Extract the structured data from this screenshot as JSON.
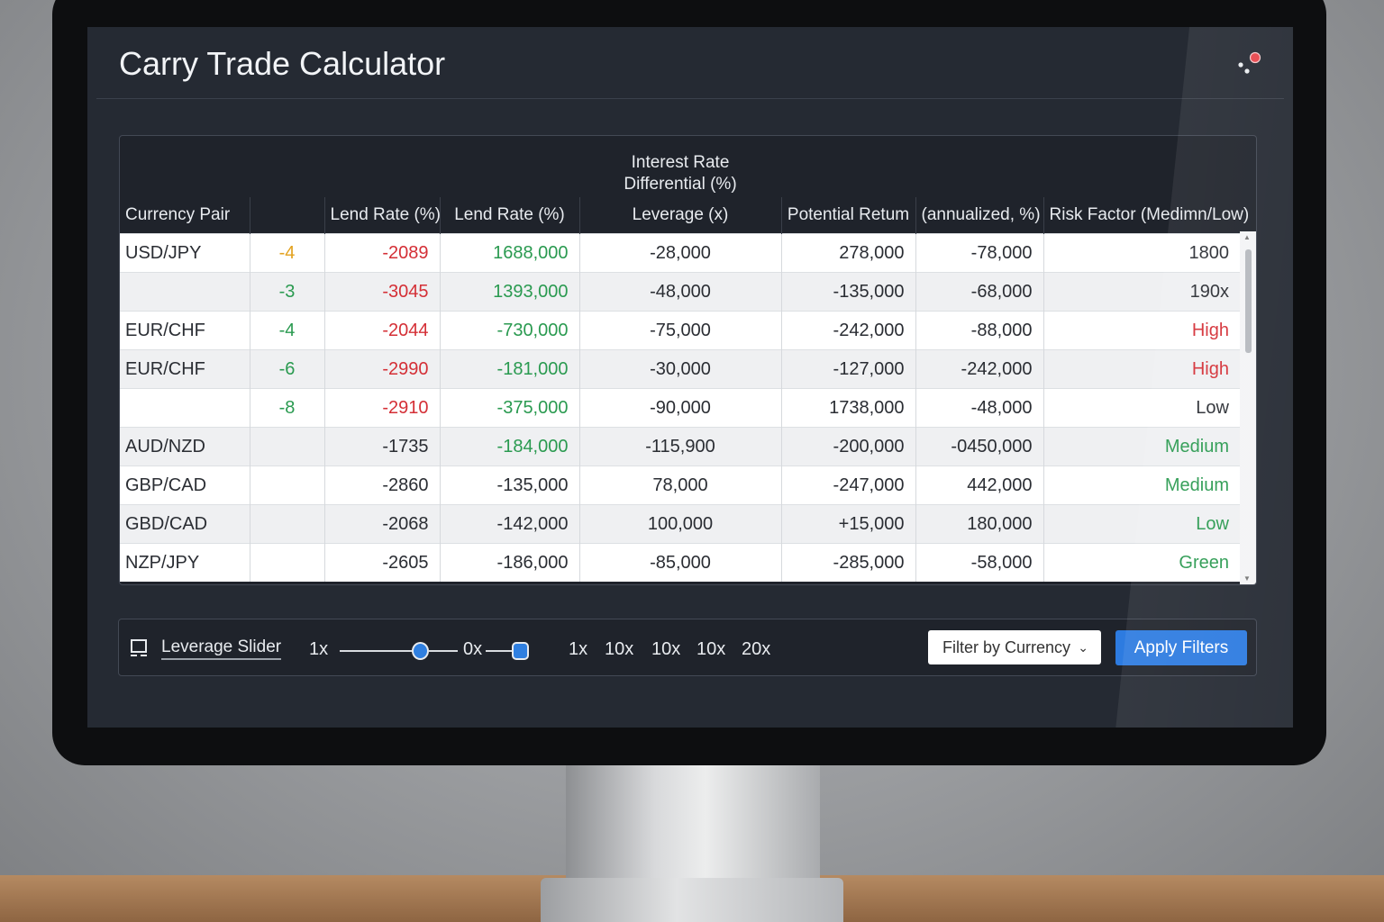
{
  "app": {
    "title": "Carry Trade Calculator",
    "menu_icon": "dots-notification-icon",
    "notification_color": "#e8454b"
  },
  "table": {
    "group_header": "Interest Rate Differential (%)",
    "group_header_line1": "Interest Rate",
    "group_header_line2": "Differential (%)",
    "columns": [
      "Currency Pair",
      "",
      "Lend Rate (%)",
      "Lend Rate (%)",
      "Leverage (x)",
      "Potential Retum",
      "(annualized, %)",
      "Risk Factor (Medimn/Low)"
    ],
    "rows": [
      {
        "cells": [
          "USD/JPY",
          "-4",
          "-2089",
          "1688,000",
          "-28,000",
          "278,000",
          "-78,000",
          "1800"
        ],
        "tones": [
          "",
          "orange",
          "red",
          "green",
          "",
          "",
          "",
          ""
        ]
      },
      {
        "cells": [
          "",
          "-3",
          "-3045",
          "1393,000",
          "-48,000",
          "-135,000",
          "-68,000",
          "190x"
        ],
        "tones": [
          "",
          "green",
          "red",
          "green",
          "",
          "",
          "",
          ""
        ]
      },
      {
        "cells": [
          "EUR/CHF",
          "-4",
          "-2044",
          "-730,000",
          "-75,000",
          "-242,000",
          "-88,000",
          "High"
        ],
        "tones": [
          "",
          "green",
          "red",
          "green",
          "",
          "",
          "",
          "red"
        ]
      },
      {
        "cells": [
          "EUR/CHF",
          "-6",
          "-2990",
          "-181,000",
          "-30,000",
          "-127,000",
          "-242,000",
          "High"
        ],
        "tones": [
          "",
          "green",
          "red",
          "green",
          "",
          "",
          "",
          "red"
        ]
      },
      {
        "cells": [
          "",
          "-8",
          "-2910",
          "-375,000",
          "-90,000",
          "1738,000",
          "-48,000",
          "Low"
        ],
        "tones": [
          "",
          "green",
          "red",
          "green",
          "",
          "",
          "",
          ""
        ]
      },
      {
        "cells": [
          "AUD/NZD",
          "",
          "-1735",
          "-184,000",
          "-115,900",
          "-200,000",
          "-0450,000",
          "Medium"
        ],
        "tones": [
          "",
          "",
          "",
          "green",
          "",
          "",
          "",
          "green"
        ]
      },
      {
        "cells": [
          "GBP/CAD",
          "",
          "-2860",
          "-135,000",
          "78,000",
          "-247,000",
          "442,000",
          "Medium"
        ],
        "tones": [
          "",
          "",
          "",
          "",
          "",
          "",
          "",
          "green"
        ]
      },
      {
        "cells": [
          "GBD/CAD",
          "",
          "-2068",
          "-142,000",
          "100,000",
          "+15,000",
          "180,000",
          "Low"
        ],
        "tones": [
          "",
          "",
          "",
          "",
          "",
          "",
          "",
          "green"
        ]
      },
      {
        "cells": [
          "NZP/JPY",
          "",
          "-2605",
          "-186,000",
          "-85,000",
          "-285,000",
          "-58,000",
          "Green"
        ],
        "tones": [
          "",
          "",
          "",
          "",
          "",
          "",
          "",
          "green"
        ]
      }
    ]
  },
  "controls": {
    "icon": "monitor-icon",
    "slider_label": "Leverage Slider",
    "slider_min_label": "1x",
    "slider_mid_label": "0x",
    "ticks": [
      "1x",
      "10x",
      "10x",
      "10x",
      "20x"
    ],
    "filter_placeholder": "Filter by Currency",
    "apply_label": "Apply Filters"
  },
  "colors": {
    "accent": "#2d7be0",
    "positive": "#2a9a50",
    "negative": "#d42f36",
    "warning": "#e3a21f"
  }
}
